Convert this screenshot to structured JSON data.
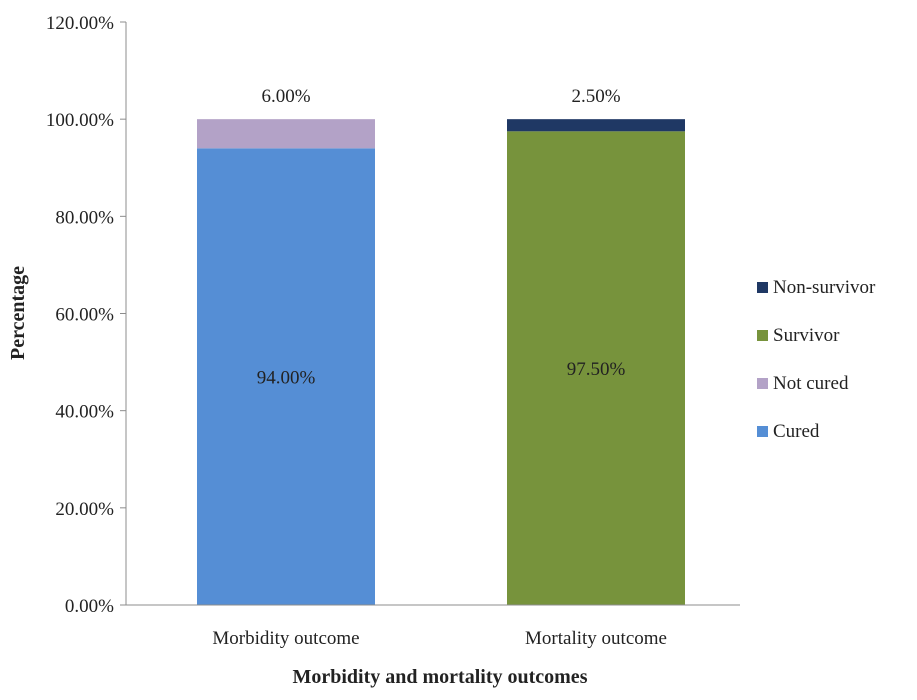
{
  "chart_data": {
    "type": "bar",
    "stacked": true,
    "title": "",
    "xlabel": "Morbidity and mortality outcomes",
    "ylabel": "Percentage",
    "ylim": [
      0,
      120
    ],
    "ytick_step": 20,
    "ytick_labels": [
      "0.00%",
      "20.00%",
      "40.00%",
      "60.00%",
      "80.00%",
      "100.00%",
      "120.00%"
    ],
    "categories": [
      "Morbidity outcome",
      "Mortality outcome"
    ],
    "series": [
      {
        "name": "Cured",
        "values": [
          94.0,
          0
        ],
        "color": "#558ed5",
        "labels": [
          "94.00%",
          ""
        ],
        "label_position": "center"
      },
      {
        "name": "Not cured",
        "values": [
          6.0,
          0
        ],
        "color": "#b3a2c7",
        "labels": [
          "6.00%",
          ""
        ],
        "label_position": "above"
      },
      {
        "name": "Survivor",
        "values": [
          0,
          97.5
        ],
        "color": "#77933c",
        "labels": [
          "",
          "97.50%"
        ],
        "label_position": "center"
      },
      {
        "name": "Non-survivor",
        "values": [
          0,
          2.5
        ],
        "color": "#1f3864",
        "labels": [
          "",
          "2.50%"
        ],
        "label_position": "above"
      }
    ],
    "legend": {
      "position": "right",
      "order": [
        "Non-survivor",
        "Survivor",
        "Not cured",
        "Cured"
      ]
    },
    "grid": false
  }
}
